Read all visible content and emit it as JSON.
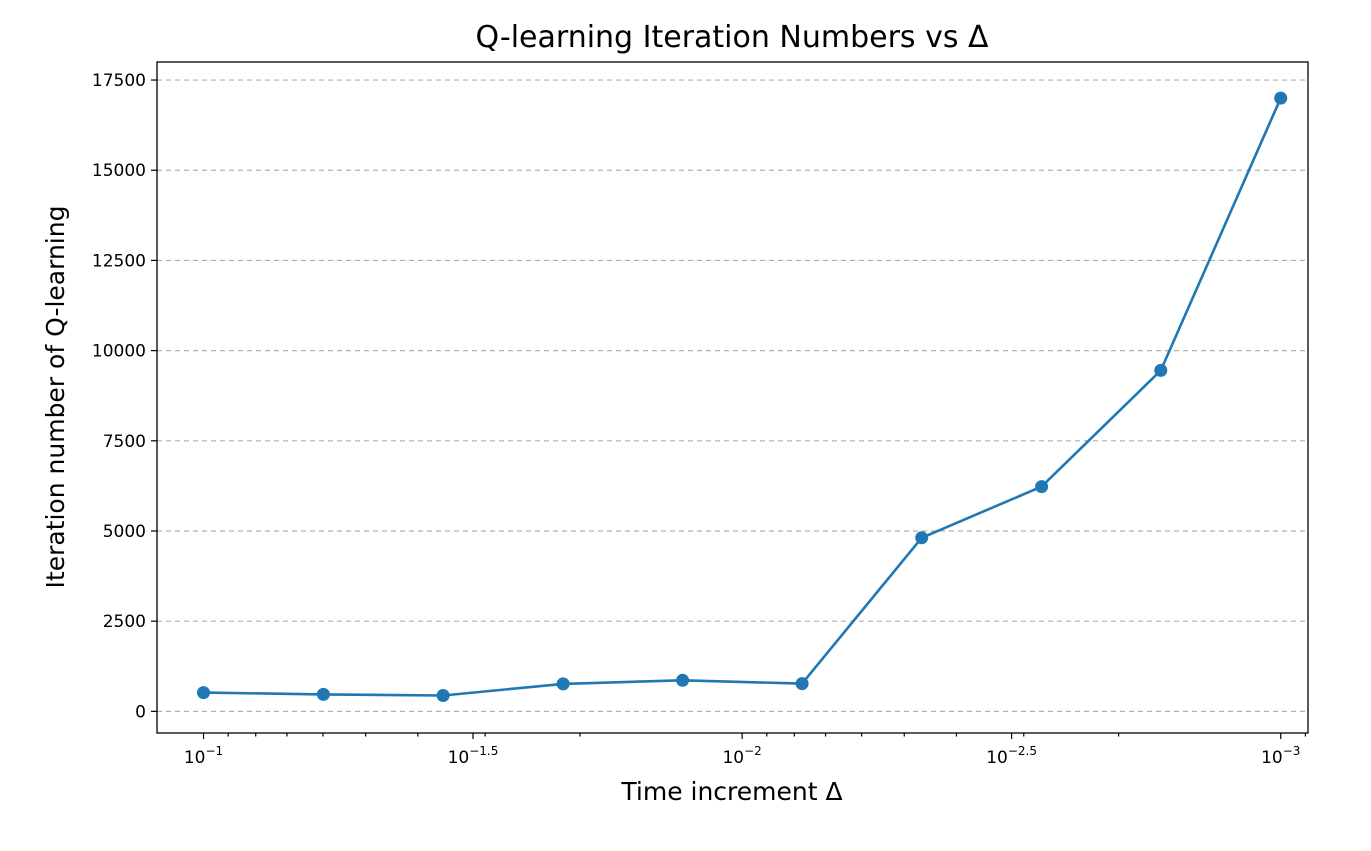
{
  "chart_data": {
    "type": "line",
    "title": "Q-learning Iteration Numbers vs Δ",
    "xlabel": "Time increment Δ",
    "ylabel": "Iteration number of Q-learning",
    "x_scale": "log",
    "x_reversed": true,
    "xlim": [
      0.122,
      0.00089
    ],
    "ylim": [
      -600,
      18000
    ],
    "x_ticks": [
      {
        "value": 0.1,
        "base": "10",
        "exp": "−1"
      },
      {
        "value": 0.0316,
        "base": "10",
        "exp": "−1.5"
      },
      {
        "value": 0.01,
        "base": "10",
        "exp": "−2"
      },
      {
        "value": 0.00316,
        "base": "10",
        "exp": "−2.5"
      },
      {
        "value": 0.001,
        "base": "10",
        "exp": "−3"
      }
    ],
    "y_ticks": [
      "0",
      "2500",
      "5000",
      "7500",
      "10000",
      "12500",
      "15000",
      "17500"
    ],
    "y_tick_values": [
      0,
      2500,
      5000,
      7500,
      10000,
      12500,
      15000,
      17500
    ],
    "grid": "y-dashed",
    "color": "#1f77b4",
    "series": [
      {
        "x": [
          0.1,
          0.0599,
          0.0359,
          0.0215,
          0.0129,
          0.00774,
          0.00464,
          0.00278,
          0.00167,
          0.001
        ],
        "values": [
          520,
          470,
          440,
          760,
          860,
          770,
          4810,
          6230,
          9450,
          17000
        ]
      }
    ]
  }
}
